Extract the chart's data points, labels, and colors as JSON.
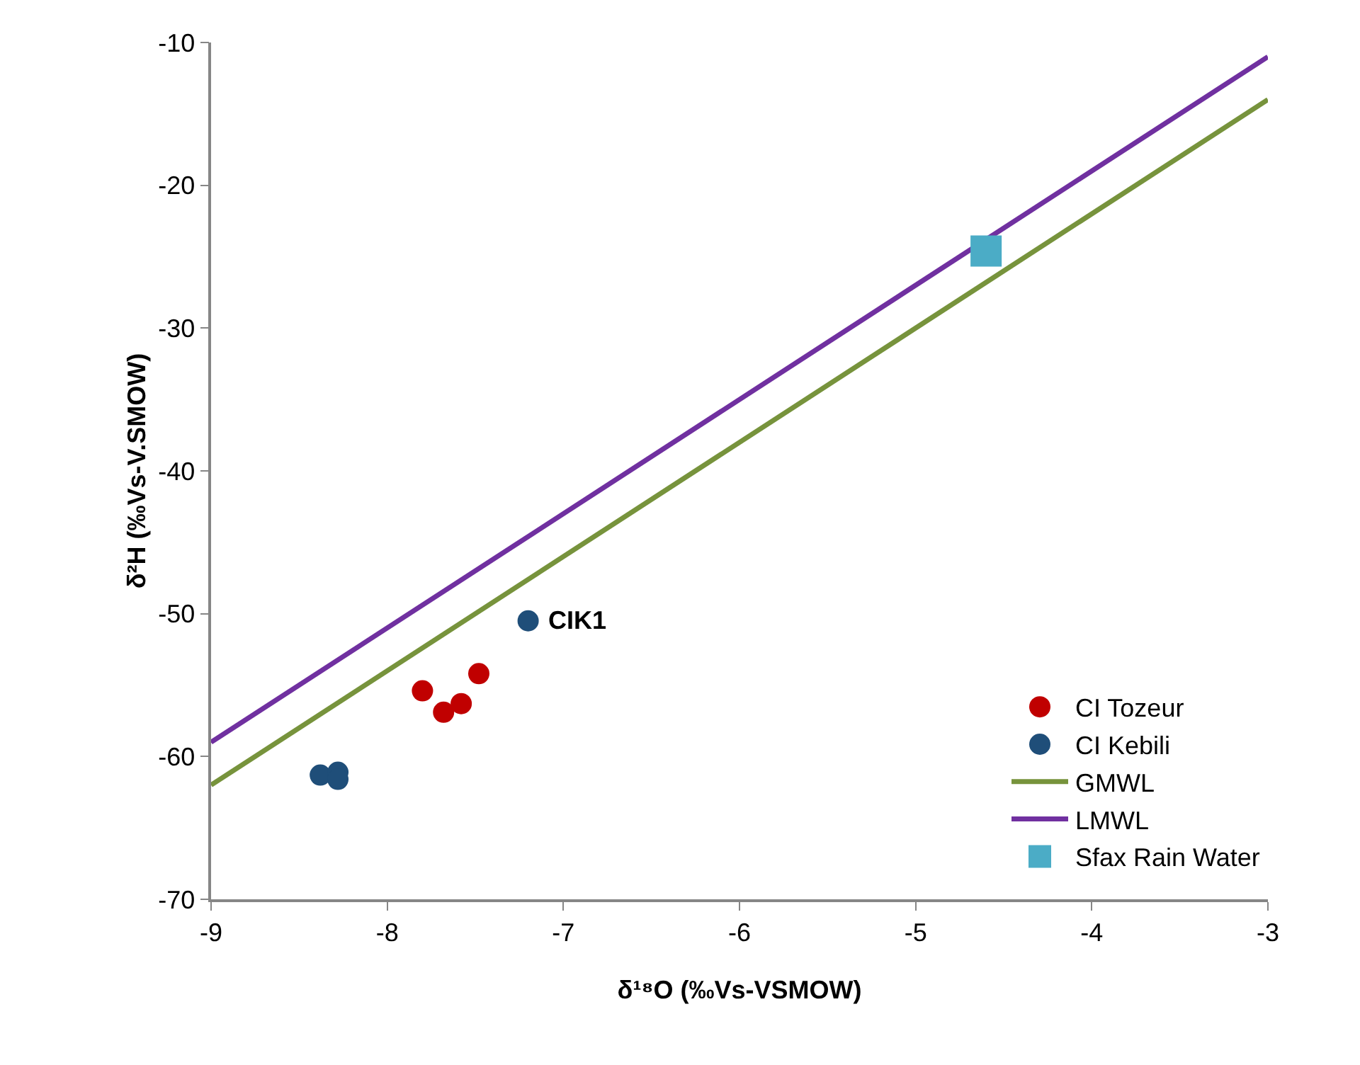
{
  "chart_data": {
    "type": "scatter",
    "xlabel": "δ¹⁸O (‰Vs-VSMOW)",
    "ylabel": "δ²H (‰Vs-V.SMOW)",
    "xlim": [
      -9,
      -3
    ],
    "xticks": [
      -9,
      -8,
      -7,
      -6,
      -5,
      -4,
      -3
    ],
    "ylim": [
      -70,
      -10
    ],
    "yticks": [
      -70,
      -60,
      -50,
      -40,
      -30,
      -20,
      -10
    ],
    "grid": false,
    "legend": "bottom right",
    "marker": "circle",
    "series": [
      {
        "name": "CI Tozeur",
        "color": "#c00000",
        "x": [
          -7.8,
          -7.68,
          -7.58,
          -7.48
        ],
        "values": [
          -55.4,
          -56.9,
          -56.3,
          -54.2
        ]
      },
      {
        "name": "CI Kebili",
        "color": "#1f4e79",
        "x": [
          -8.38,
          -8.28,
          -8.28,
          -7.2
        ],
        "values": [
          -61.3,
          -61.1,
          -61.6,
          -50.5
        ]
      },
      {
        "name": "GMWL",
        "type": "line",
        "marker": "none",
        "line_style": "solid",
        "color": "#77933c",
        "x": [
          -9,
          -3
        ],
        "values": [
          -62,
          -14
        ]
      },
      {
        "name": "LMWL",
        "type": "line",
        "marker": "none",
        "line_style": "solid",
        "color": "#7030a0",
        "x": [
          -9,
          -3
        ],
        "values": [
          -59,
          -11
        ]
      },
      {
        "name": "Sfax Rain Water",
        "marker": "square",
        "color": "#4bacc6",
        "x": [
          -4.6
        ],
        "values": [
          -24.6
        ]
      }
    ],
    "annotations": [
      {
        "text": "CIK1",
        "x": -7.2,
        "y": -50.5
      }
    ]
  }
}
